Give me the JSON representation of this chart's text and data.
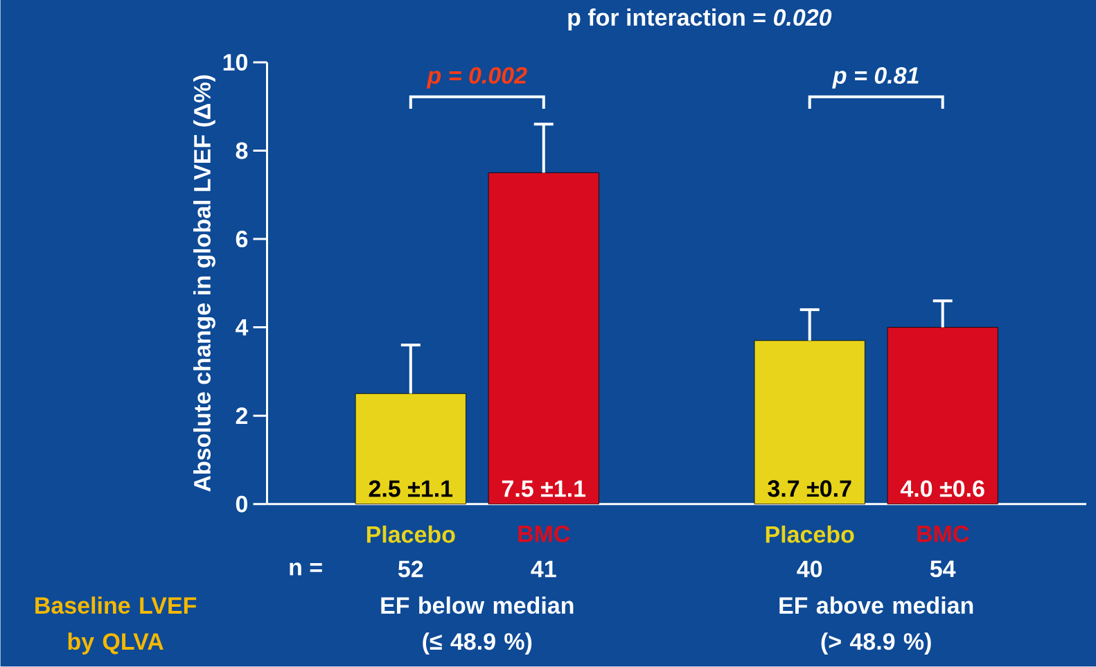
{
  "chart_data": {
    "type": "bar",
    "ylabel": "Absolute change in global LVEF (Δ%)",
    "categories": [
      "Placebo",
      "BMC",
      "Placebo",
      "BMC"
    ],
    "values": [
      2.5,
      7.5,
      3.7,
      4.0
    ],
    "errors": [
      1.1,
      1.1,
      0.7,
      0.6
    ],
    "colors": [
      "#e8d41a",
      "#d80c1e",
      "#e8d41a",
      "#d80c1e"
    ],
    "value_labels": [
      "2.5 ±1.1",
      "7.5 ±1.1",
      "3.7 ±0.7",
      "4.0 ±0.6"
    ],
    "ylim": [
      0,
      10
    ],
    "yticks": [
      0,
      2,
      4,
      6,
      8,
      10
    ],
    "grid": false,
    "annotations": [
      "p for interaction = *0.020*",
      "p = 0.002",
      "p = 0.81",
      "n =",
      "52",
      "41",
      "40",
      "54",
      "EF below median (≤ 48.9 %)",
      "EF above median (> 48.9 %)",
      "Baseline LVEF by QLVA"
    ]
  }
}
